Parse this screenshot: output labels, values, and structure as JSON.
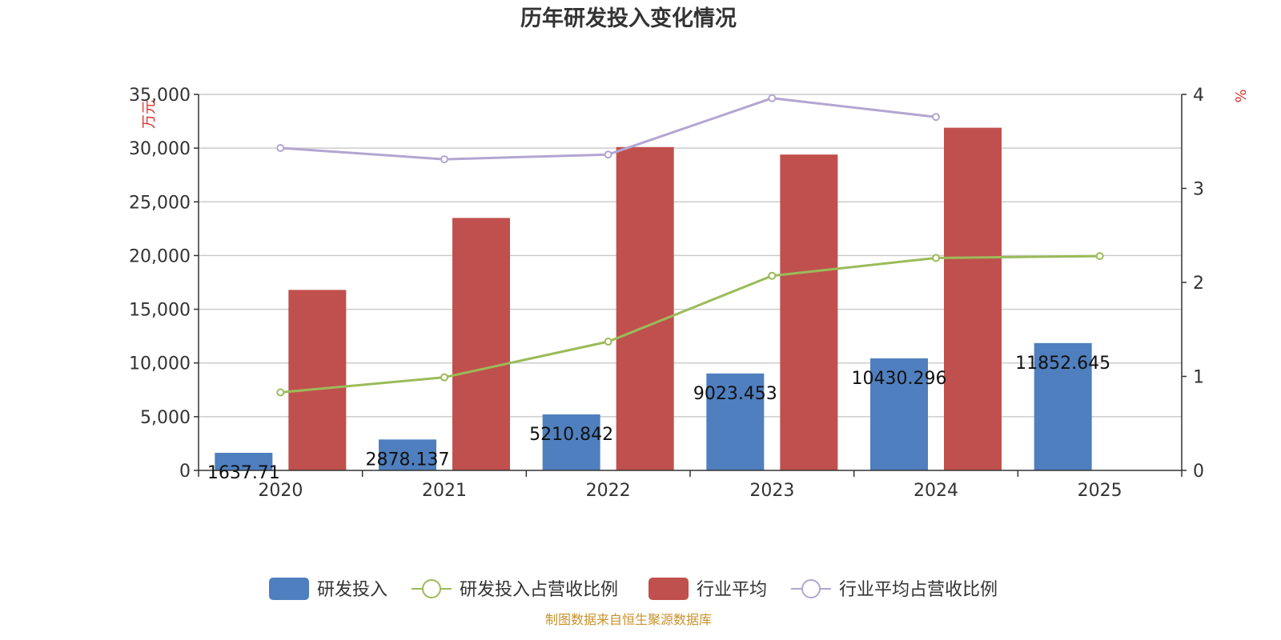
{
  "chart_data": {
    "type": "bar",
    "title": "历年研发投入变化情况",
    "categories": [
      "2020",
      "2021",
      "2022",
      "2023",
      "2024",
      "2025"
    ],
    "y_left": {
      "unit_label": "万元",
      "ylim": [
        0,
        35000
      ],
      "ticks": [
        0,
        5000,
        10000,
        15000,
        20000,
        25000,
        30000,
        35000
      ],
      "tick_labels": [
        "0",
        "5,000",
        "10,000",
        "15,000",
        "20,000",
        "25,000",
        "30,000",
        "35,000"
      ]
    },
    "y_right": {
      "unit_label": "%",
      "ylim": [
        0,
        4
      ],
      "ticks": [
        0,
        1,
        2,
        3,
        4
      ],
      "tick_labels": [
        "0",
        "1",
        "2",
        "3",
        "4"
      ]
    },
    "grid": true,
    "legend_position": "bottom",
    "series": [
      {
        "name": "研发投入",
        "type": "bar",
        "axis": "left",
        "color": "#4f7fbe",
        "values": [
          1637.71,
          2878.137,
          5210.842,
          9023.453,
          10430.296,
          11852.645
        ],
        "labels": [
          "1637.71",
          "2878.137",
          "5210.842",
          "9023.453",
          "10430.296",
          "11852.645"
        ]
      },
      {
        "name": "研发投入占营收比例",
        "type": "line",
        "axis": "right",
        "color": "#9bbb59",
        "values": [
          0.83,
          0.99,
          1.37,
          2.07,
          2.26,
          2.28
        ]
      },
      {
        "name": "行业平均",
        "type": "bar",
        "axis": "left",
        "color": "#c0504d",
        "values": [
          16800,
          23500,
          30100,
          29400,
          31900,
          null
        ]
      },
      {
        "name": "行业平均占营收比例",
        "type": "line",
        "axis": "right",
        "color": "#b3a6d1",
        "values": [
          3.43,
          3.31,
          3.36,
          3.96,
          3.76,
          null
        ]
      }
    ],
    "source_note": "制图数据来自恒生聚源数据库"
  }
}
